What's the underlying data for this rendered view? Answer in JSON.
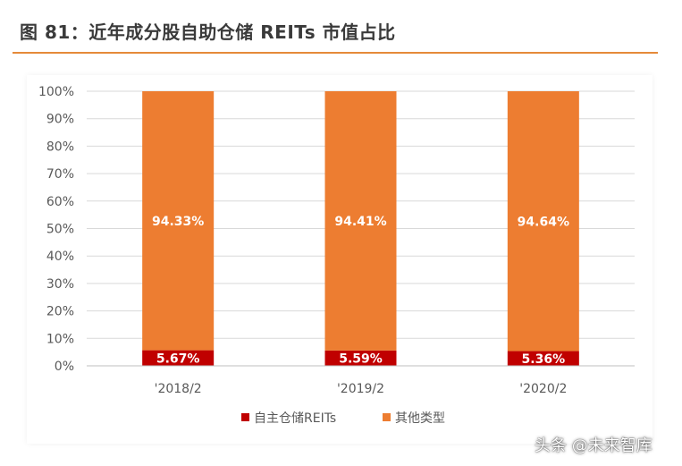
{
  "figure": {
    "title": "图 81：近年成分股自助仓储 REITs 市值占比"
  },
  "watermark": "头条 @未来智库",
  "colors": {
    "self_storage": "#c00000",
    "other": "#ed7d31",
    "title_rule": "#e58a3a"
  },
  "chart_data": {
    "type": "bar",
    "stacked": true,
    "categories": [
      "'2018/2",
      "'2019/2",
      "'2020/2"
    ],
    "series": [
      {
        "name": "自主仓储REITs",
        "values": [
          5.67,
          5.59,
          5.36
        ],
        "labels": [
          "5.67%",
          "5.59%",
          "5.36%"
        ],
        "color": "#c00000"
      },
      {
        "name": "其他类型",
        "values": [
          94.33,
          94.41,
          94.64
        ],
        "labels": [
          "94.33%",
          "94.41%",
          "94.64%"
        ],
        "color": "#ed7d31"
      }
    ],
    "y_ticks": [
      "0%",
      "10%",
      "20%",
      "30%",
      "40%",
      "50%",
      "60%",
      "70%",
      "80%",
      "90%",
      "100%"
    ],
    "ylim": [
      0,
      100
    ],
    "grid": true,
    "legend_position": "bottom"
  }
}
